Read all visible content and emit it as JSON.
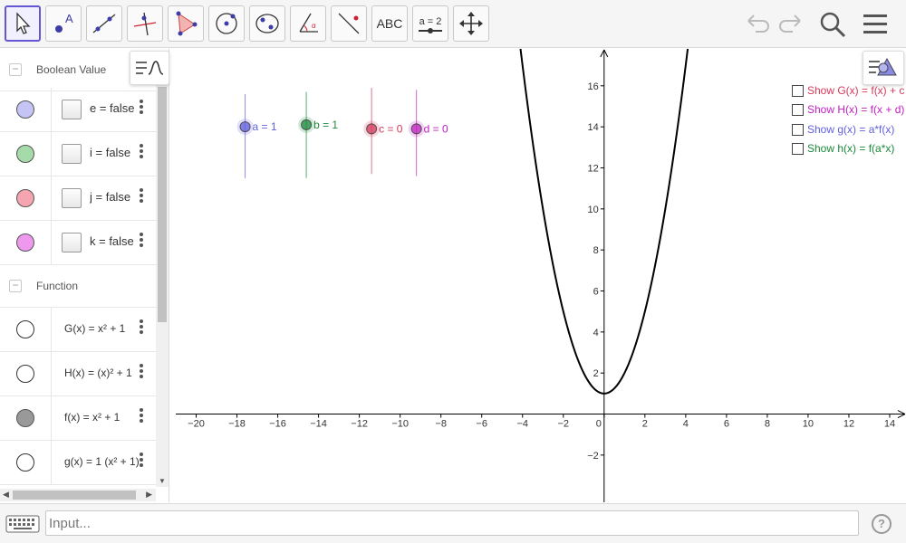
{
  "toolbar": {
    "tools": [
      {
        "name": "move-tool",
        "icon": "arrow-cursor-icon"
      },
      {
        "name": "point-tool",
        "icon": "point-icon",
        "glyph": "A"
      },
      {
        "name": "line-tool",
        "icon": "line-icon"
      },
      {
        "name": "perpendicular-line-tool",
        "icon": "perpendicular-icon"
      },
      {
        "name": "polygon-tool",
        "icon": "polygon-icon"
      },
      {
        "name": "circle-tool",
        "icon": "circle-icon"
      },
      {
        "name": "ellipse-tool",
        "icon": "ellipse-icon"
      },
      {
        "name": "angle-tool",
        "icon": "angle-icon"
      },
      {
        "name": "reflect-tool",
        "icon": "reflect-icon"
      },
      {
        "name": "text-tool",
        "icon": "text-icon",
        "label": "ABC"
      },
      {
        "name": "slider-tool",
        "icon": "slider-icon",
        "label": "a = 2"
      },
      {
        "name": "move-graphics-tool",
        "icon": "move-arrows-icon"
      }
    ],
    "undo_icon": "undo-icon",
    "redo_icon": "redo-icon",
    "search_icon": "search-icon",
    "menu_icon": "hamburger-menu-icon"
  },
  "algebra": {
    "groups": [
      {
        "label": "Boolean Value",
        "items": [
          {
            "text": "e = false",
            "color": "#c5c5f5"
          },
          {
            "text": "i = false",
            "color": "#a5dba8"
          },
          {
            "text": "j = false",
            "color": "#f5a5b0"
          },
          {
            "text": "k = false",
            "color": "#ee99ee"
          }
        ]
      },
      {
        "label": "Function",
        "items": [
          {
            "text": "G(x) = x² + 1",
            "color": "#ffffff"
          },
          {
            "text": "H(x) = (x)² + 1",
            "color": "#ffffff"
          },
          {
            "text": "f(x) = x² + 1",
            "color": "#999999"
          },
          {
            "text": "g(x) = 1 (x² + 1)",
            "color": "#ffffff"
          }
        ]
      }
    ]
  },
  "graphics": {
    "x_ticks": [
      "−20",
      "−18",
      "−16",
      "−14",
      "−12",
      "−10",
      "−8",
      "−6",
      "−4",
      "−2",
      "0",
      "2",
      "4",
      "6",
      "8",
      "10",
      "12",
      "14"
    ],
    "y_ticks": [
      "16",
      "14",
      "12",
      "10",
      "8",
      "6",
      "4",
      "2",
      "−2"
    ],
    "xlim": [
      -21,
      14.8
    ],
    "ylim": [
      -4.3,
      17.8
    ],
    "curve": {
      "function": "x^2 + 1",
      "color": "#000000"
    },
    "sliders": [
      {
        "label": "a = 1",
        "color": "#6060e0"
      },
      {
        "label": "b = 1",
        "color": "#1a8a3a"
      },
      {
        "label": "c = 0",
        "color": "#d63859"
      },
      {
        "label": "d = 0",
        "color": "#c020c0"
      }
    ],
    "checkboxes": [
      {
        "label": "Show G(x) = f(x) + c",
        "color": "#d63859"
      },
      {
        "label": "Show H(x) = f(x + d)",
        "color": "#c020c0"
      },
      {
        "label": "Show g(x) = a*f(x)",
        "color": "#6060e0"
      },
      {
        "label": "Show h(x) = f(a*x)",
        "color": "#1a8a3a"
      }
    ]
  },
  "inputbar": {
    "placeholder": "Input...",
    "keyboard_icon": "keyboard-icon",
    "help_icon": "help-icon",
    "help_label": "?"
  }
}
